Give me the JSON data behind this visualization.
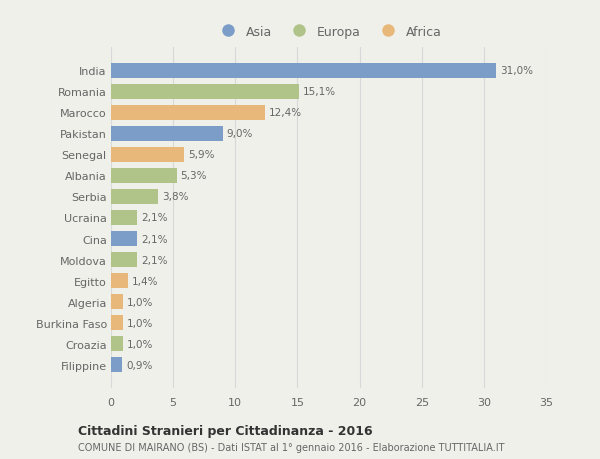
{
  "countries": [
    "India",
    "Romania",
    "Marocco",
    "Pakistan",
    "Senegal",
    "Albania",
    "Serbia",
    "Ucraina",
    "Cina",
    "Moldova",
    "Egitto",
    "Algeria",
    "Burkina Faso",
    "Croazia",
    "Filippine"
  ],
  "values": [
    31.0,
    15.1,
    12.4,
    9.0,
    5.9,
    5.3,
    3.8,
    2.1,
    2.1,
    2.1,
    1.4,
    1.0,
    1.0,
    1.0,
    0.9
  ],
  "labels": [
    "31,0%",
    "15,1%",
    "12,4%",
    "9,0%",
    "5,9%",
    "5,3%",
    "3,8%",
    "2,1%",
    "2,1%",
    "2,1%",
    "1,4%",
    "1,0%",
    "1,0%",
    "1,0%",
    "0,9%"
  ],
  "continents": [
    "Asia",
    "Europa",
    "Africa",
    "Asia",
    "Africa",
    "Europa",
    "Europa",
    "Europa",
    "Asia",
    "Europa",
    "Africa",
    "Africa",
    "Africa",
    "Europa",
    "Asia"
  ],
  "colors": {
    "Asia": "#7b9dc8",
    "Europa": "#b0c48a",
    "Africa": "#e8b87a"
  },
  "xlim": [
    0,
    35
  ],
  "xticks": [
    0,
    5,
    10,
    15,
    20,
    25,
    30,
    35
  ],
  "title": "Cittadini Stranieri per Cittadinanza - 2016",
  "subtitle": "COMUNE DI MAIRANO (BS) - Dati ISTAT al 1° gennaio 2016 - Elaborazione TUTTITALIA.IT",
  "fig_background": "#f0f0eb",
  "plot_background": "#f0f0eb",
  "grid_color": "#d8d8d8",
  "label_color": "#666666",
  "title_color": "#333333",
  "subtitle_color": "#666666",
  "bar_height": 0.72
}
